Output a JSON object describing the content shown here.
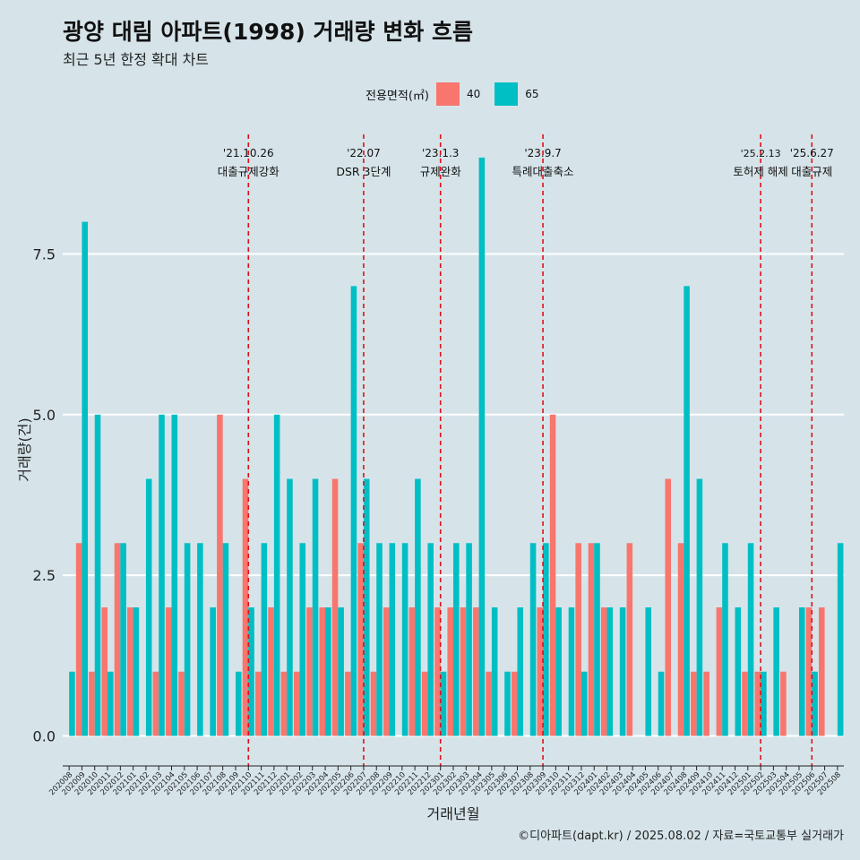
{
  "title": "광양 대림 아파트(1998) 거래량 변화 흐름",
  "subtitle": "최근 5년 한정 확대 차트",
  "caption": "©디아파트(dapt.kr) / 2025.08.02 / 자료=국토교통부 실거래가",
  "legend": {
    "title": "전용면적(㎡)",
    "items": [
      {
        "label": "40",
        "color": "#f8766d"
      },
      {
        "label": "65",
        "color": "#00bfc4"
      }
    ]
  },
  "chart_data": {
    "type": "bar",
    "title": "광양 대림 아파트(1998) 거래량 변화 흐름",
    "xlabel": "거래년월",
    "ylabel": "거래량(건)",
    "ylim": [
      -0.3,
      9.5
    ],
    "yticks": [
      0.0,
      2.5,
      5.0,
      7.5
    ],
    "ytick_labels": [
      "0.0",
      "2.5",
      "5.0",
      "7.5"
    ],
    "grid": true,
    "categories": [
      "202008",
      "202009",
      "202010",
      "202011",
      "202012",
      "202101",
      "202102",
      "202103",
      "202104",
      "202105",
      "202106",
      "202107",
      "202108",
      "202109",
      "202110",
      "202111",
      "202112",
      "202201",
      "202202",
      "202203",
      "202204",
      "202205",
      "202206",
      "202207",
      "202208",
      "202209",
      "202210",
      "202211",
      "202212",
      "202301",
      "202302",
      "202303",
      "202304",
      "202305",
      "202306",
      "202307",
      "202308",
      "202309",
      "202310",
      "202311",
      "202312",
      "202401",
      "202402",
      "202403",
      "202404",
      "202405",
      "202406",
      "202407",
      "202408",
      "202409",
      "202410",
      "202411",
      "202412",
      "202501",
      "202502",
      "202503",
      "202504",
      "202505",
      "202506",
      "202507",
      "202508"
    ],
    "series": [
      {
        "name": "40",
        "color": "#f8766d",
        "values": [
          0,
          3,
          1,
          2,
          3,
          2,
          0,
          1,
          2,
          1,
          0,
          0,
          5,
          0,
          4,
          1,
          2,
          1,
          1,
          2,
          2,
          4,
          1,
          3,
          1,
          2,
          0,
          2,
          1,
          2,
          2,
          2,
          2,
          1,
          0,
          1,
          0,
          2,
          5,
          0,
          3,
          3,
          2,
          0,
          3,
          0,
          0,
          4,
          3,
          1,
          1,
          2,
          0,
          1,
          1,
          0,
          1,
          0,
          2,
          2,
          0
        ]
      },
      {
        "name": "65",
        "color": "#00bfc4",
        "values": [
          1,
          8,
          5,
          1,
          3,
          2,
          4,
          5,
          5,
          3,
          3,
          2,
          3,
          1,
          2,
          3,
          5,
          4,
          3,
          4,
          2,
          2,
          7,
          4,
          3,
          3,
          3,
          4,
          3,
          1,
          3,
          3,
          9,
          2,
          1,
          2,
          3,
          3,
          2,
          2,
          1,
          3,
          2,
          2,
          0,
          2,
          1,
          0,
          7,
          4,
          0,
          3,
          2,
          3,
          1,
          2,
          0,
          2,
          1,
          0,
          3
        ]
      }
    ],
    "events": [
      {
        "date": "'21.10.26",
        "label": "대출규제강화",
        "after": "202110",
        "offset": 0.0
      },
      {
        "date": "'22.07",
        "label": "DSR 3단계",
        "after": "202207",
        "offset": 0.0
      },
      {
        "date": "'23.1.3",
        "label": "규제완화",
        "after": "202301",
        "offset": 0.0
      },
      {
        "date": "'23.9.7",
        "label": "특례대출축소",
        "after": "202309",
        "offset": 0.0
      },
      {
        "date": "'25.2.13",
        "label": "토허제 해제",
        "after": "202502",
        "offset": 0.0
      },
      {
        "date": "'25.6.27",
        "label": "대출규제",
        "after": "202506",
        "offset": 0.0
      }
    ]
  }
}
